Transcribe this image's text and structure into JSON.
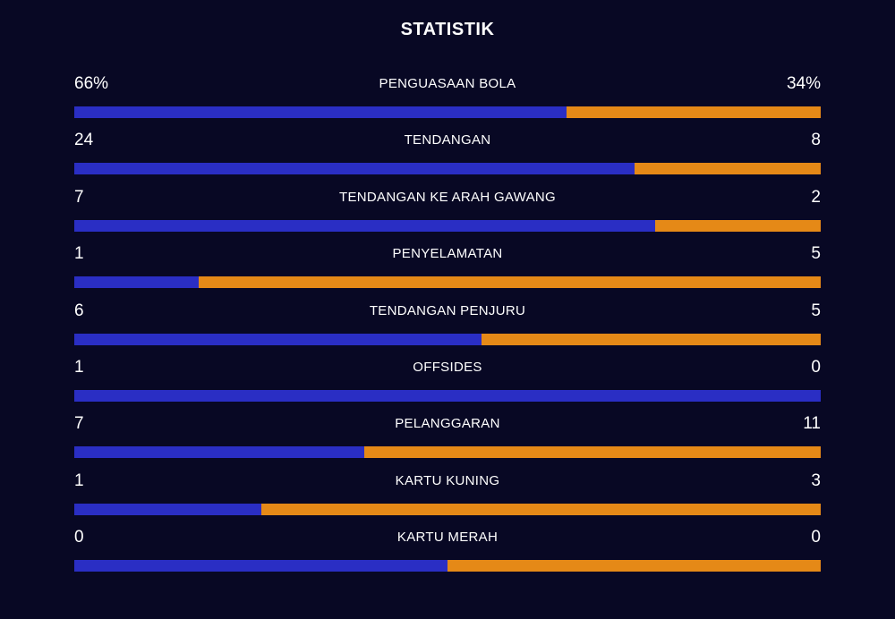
{
  "title": "STATISTIK",
  "colors": {
    "background": "#080824",
    "home": "#2a2ec4",
    "away": "#e58917"
  },
  "stats": [
    {
      "label": "PENGUASAAN BOLA",
      "home": "66%",
      "away": "34%",
      "home_value": 66,
      "away_value": 34
    },
    {
      "label": "TENDANGAN",
      "home": "24",
      "away": "8",
      "home_value": 24,
      "away_value": 8
    },
    {
      "label": "TENDANGAN KE ARAH GAWANG",
      "home": "7",
      "away": "2",
      "home_value": 7,
      "away_value": 2
    },
    {
      "label": "PENYELAMATAN",
      "home": "1",
      "away": "5",
      "home_value": 1,
      "away_value": 5
    },
    {
      "label": "TENDANGAN PENJURU",
      "home": "6",
      "away": "5",
      "home_value": 6,
      "away_value": 5
    },
    {
      "label": "OFFSIDES",
      "home": "1",
      "away": "0",
      "home_value": 1,
      "away_value": 0
    },
    {
      "label": "PELANGGARAN",
      "home": "7",
      "away": "11",
      "home_value": 7,
      "away_value": 11
    },
    {
      "label": "KARTU KUNING",
      "home": "1",
      "away": "3",
      "home_value": 1,
      "away_value": 3
    },
    {
      "label": "KARTU MERAH",
      "home": "0",
      "away": "0",
      "home_value": 0,
      "away_value": 0
    }
  ]
}
